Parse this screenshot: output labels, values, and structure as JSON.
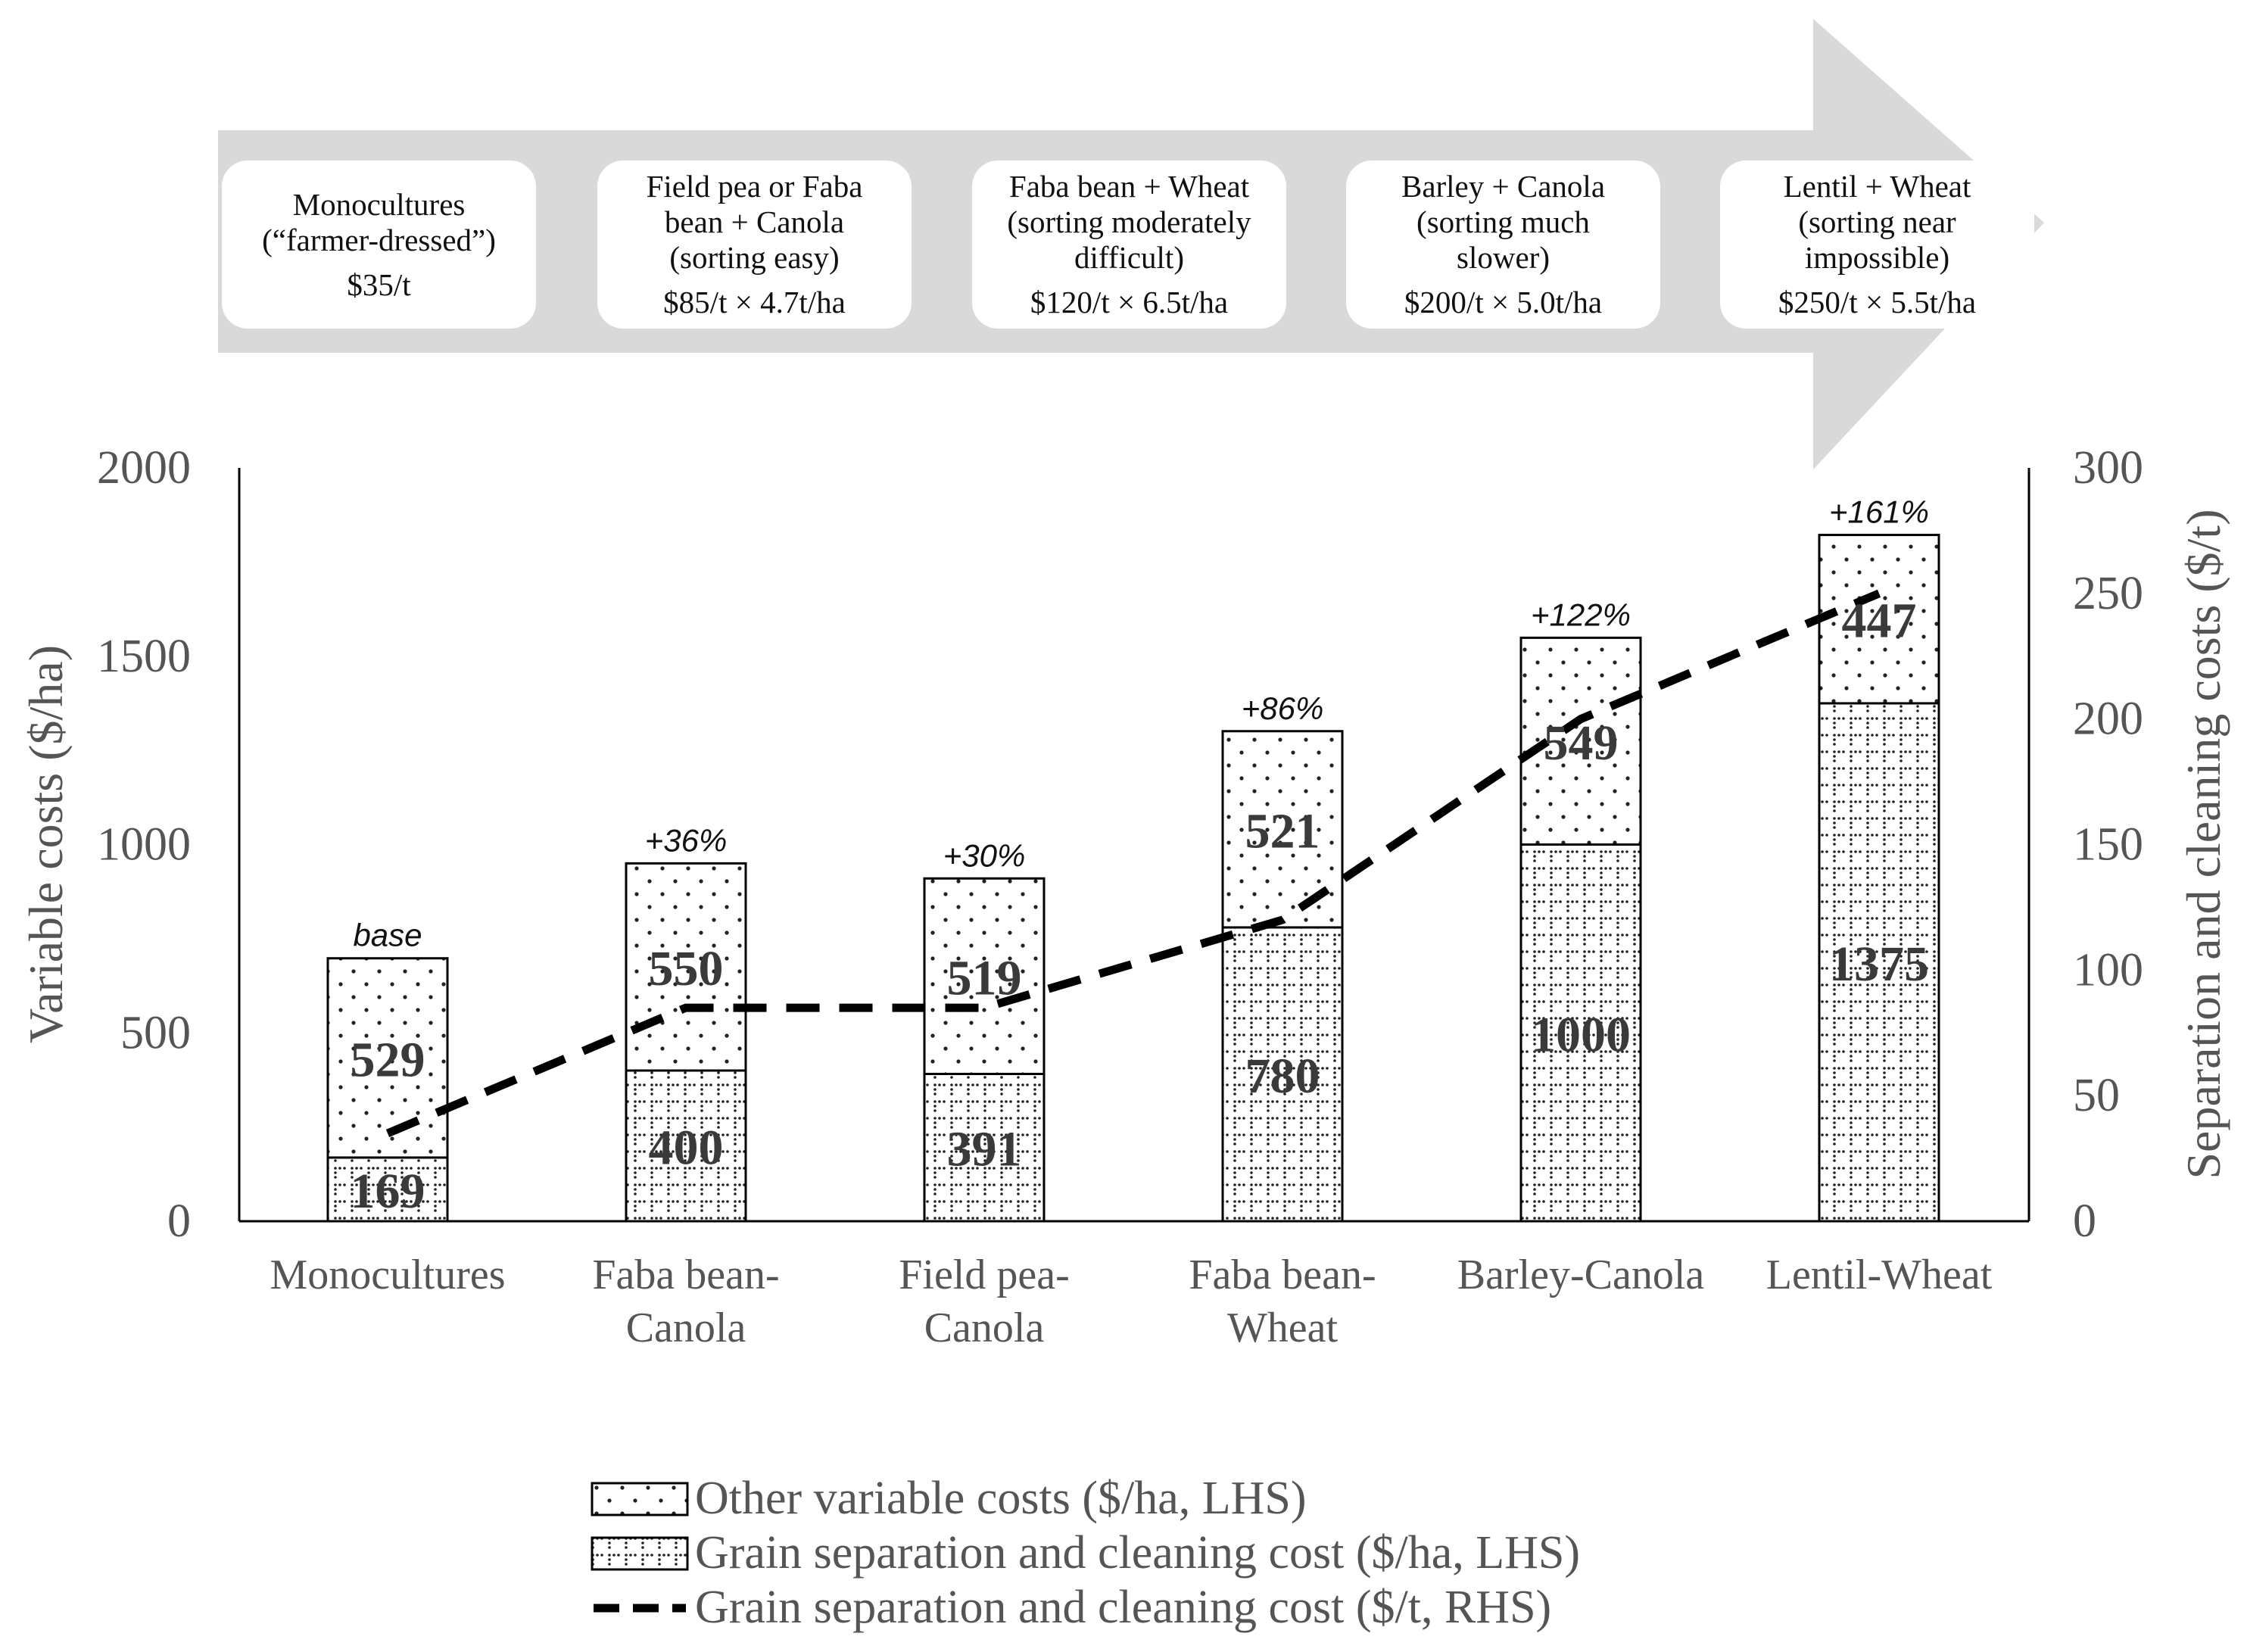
{
  "stages": [
    {
      "lines": [
        "Monocultures",
        "(“farmer-dressed”)"
      ],
      "cost": "$35/t"
    },
    {
      "lines": [
        "Field pea or Faba",
        "bean + Canola",
        "(sorting easy)"
      ],
      "cost": "$85/t × 4.7t/ha"
    },
    {
      "lines": [
        "Faba bean + Wheat",
        "(sorting moderately",
        "difficult)"
      ],
      "cost": "$120/t × 6.5t/ha"
    },
    {
      "lines": [
        "Barley + Canola",
        "(sorting much",
        "slower)"
      ],
      "cost": "$200/t × 5.0t/ha"
    },
    {
      "lines": [
        "Lentil + Wheat",
        "(sorting near",
        "impossible)"
      ],
      "cost": "$250/t × 5.5t/ha"
    }
  ],
  "chart_data": {
    "type": "bar",
    "stacked": true,
    "categories": [
      [
        "Monocultures"
      ],
      [
        "Faba bean-",
        "Canola"
      ],
      [
        "Field pea-",
        "Canola"
      ],
      [
        "Faba bean-",
        "Wheat"
      ],
      [
        "Barley-Canola"
      ],
      [
        "Lentil-Wheat"
      ]
    ],
    "series": [
      {
        "name": "Grain separation and cleaning cost ($/ha, LHS)",
        "pattern": "grid",
        "axis": "left",
        "values": [
          169,
          400,
          391,
          780,
          1000,
          1375
        ]
      },
      {
        "name": "Other variable costs ($/ha, LHS)",
        "pattern": "dots",
        "axis": "left",
        "values": [
          529,
          550,
          519,
          521,
          549,
          447
        ]
      },
      {
        "name": "Grain separation and cleaning cost ($/t, RHS)",
        "type": "line",
        "style": "dashed",
        "axis": "right",
        "values": [
          35,
          85,
          85,
          120,
          200,
          250
        ]
      }
    ],
    "increase_labels": [
      "base",
      "+36%",
      "+30%",
      "+86%",
      "+122%",
      "+161%"
    ],
    "ylabel": "Variable costs ($/ha)",
    "y2label": "Separation and cleaning costs ($/t)",
    "ylim": [
      0,
      2000
    ],
    "y2lim": [
      0,
      300
    ],
    "yticks": [
      0,
      500,
      1000,
      1500,
      2000
    ],
    "y2ticks": [
      0,
      50,
      100,
      150,
      200,
      250,
      300
    ],
    "legend": {
      "position": "bottom",
      "items": [
        "Other variable costs ($/ha, LHS)",
        "Grain separation and cleaning cost ($/ha, LHS)",
        "Grain separation and cleaning cost ($/t, RHS)"
      ]
    },
    "colors": {
      "axis": "#000000",
      "text": "#555555",
      "bar_fill": "#ffffff",
      "pattern": "#333333",
      "arrow": "#d9d9d9"
    }
  }
}
